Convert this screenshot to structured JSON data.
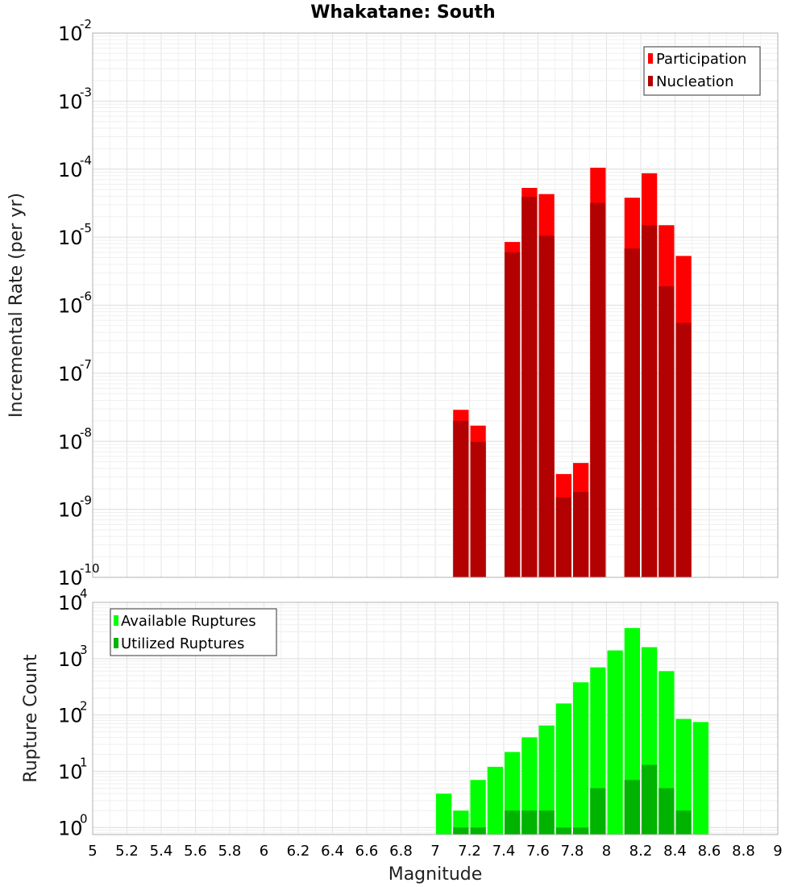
{
  "chart_data": [
    {
      "type": "bar",
      "title": "Whakatane: South",
      "xlabel": "",
      "ylabel": "Incremental Rate (per yr)",
      "yscale": "log",
      "ylim": [
        1e-10,
        0.01
      ],
      "xlim": [
        5,
        9
      ],
      "y_tick_exponents": [
        -10,
        -9,
        -8,
        -7,
        -6,
        -5,
        -4,
        -3,
        -2
      ],
      "legend_placement": "top-right",
      "grid": true,
      "bar_width": 0.1,
      "series": [
        {
          "name": "Participation",
          "color": "#ff0000",
          "x": [
            7.15,
            7.25,
            7.45,
            7.55,
            7.65,
            7.75,
            7.85,
            7.95,
            8.15,
            8.25,
            8.35,
            8.45
          ],
          "values": [
            2.9e-08,
            1.7e-08,
            8.5e-06,
            5.3e-05,
            4.3e-05,
            3.3e-09,
            4.8e-09,
            0.000105,
            3.8e-05,
            8.7e-05,
            1.5e-05,
            5.3e-06
          ]
        },
        {
          "name": "Nucleation",
          "color": "#b30000",
          "x": [
            7.15,
            7.25,
            7.45,
            7.55,
            7.65,
            7.75,
            7.85,
            7.95,
            8.15,
            8.25,
            8.35,
            8.45
          ],
          "values": [
            2e-08,
            9.8e-09,
            6e-06,
            3.9e-05,
            1.05e-05,
            1.5e-09,
            1.8e-09,
            3.2e-05,
            6.8e-06,
            1.5e-05,
            1.9e-06,
            5.5e-07
          ]
        }
      ]
    },
    {
      "type": "bar",
      "title": "",
      "xlabel": "Magnitude",
      "ylabel": "Rupture Count",
      "yscale": "log",
      "ylim": [
        0.75,
        10000
      ],
      "xlim": [
        5,
        9
      ],
      "x_ticks": [
        "5",
        "5.2",
        "5.4",
        "5.6",
        "5.8",
        "6",
        "6.2",
        "6.4",
        "6.6",
        "6.8",
        "7",
        "7.2",
        "7.4",
        "7.6",
        "7.8",
        "8",
        "8.2",
        "8.4",
        "8.6",
        "8.8",
        "9"
      ],
      "y_tick_exponents": [
        0,
        1,
        2,
        3,
        4
      ],
      "legend_placement": "top-left",
      "grid": true,
      "bar_width": 0.1,
      "series": [
        {
          "name": "Available Ruptures",
          "color": "#00ff00",
          "x": [
            7.05,
            7.15,
            7.25,
            7.35,
            7.45,
            7.55,
            7.65,
            7.75,
            7.85,
            7.95,
            8.05,
            8.15,
            8.25,
            8.35,
            8.45,
            8.55
          ],
          "values": [
            4,
            2,
            7,
            12,
            22,
            40,
            65,
            160,
            380,
            700,
            1400,
            3500,
            1600,
            600,
            85,
            75
          ]
        },
        {
          "name": "Utilized Ruptures",
          "color": "#00b300",
          "x": [
            7.15,
            7.25,
            7.45,
            7.55,
            7.65,
            7.75,
            7.85,
            7.95,
            8.15,
            8.25,
            8.35,
            8.45
          ],
          "values": [
            1,
            1,
            2,
            2,
            2,
            1,
            1,
            5,
            7,
            13,
            5,
            2
          ]
        }
      ]
    }
  ]
}
